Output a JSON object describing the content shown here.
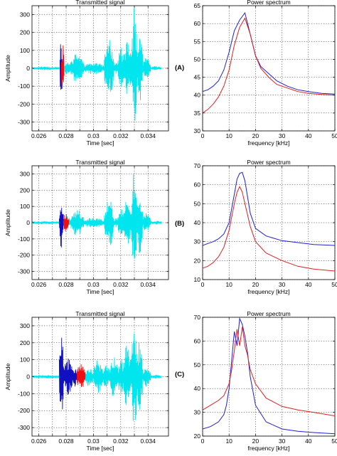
{
  "panel_labels": [
    "(A)",
    "(B)",
    "(C)"
  ],
  "chart_data": [
    {
      "type": "line",
      "panel": "(A)",
      "title": "Transmitted signal",
      "xlabel": "Time [sec]",
      "ylabel": "Amplitude",
      "xlim": [
        0.0255,
        0.0355
      ],
      "ylim": [
        -350,
        350
      ],
      "xticks": [
        0.026,
        0.027,
        0.028,
        0.029,
        0.03,
        0.031,
        0.032,
        0.033,
        0.034
      ],
      "xticklabels": [
        "0.026",
        "",
        "0.028",
        "",
        "0.03",
        "",
        "0.032",
        "",
        "0.034"
      ],
      "yticks": [
        -300,
        -200,
        -100,
        0,
        100,
        200,
        300
      ],
      "grid": true,
      "series": [
        {
          "color": "#00e5ee",
          "segments": [
            [
              0.0255,
              0.0275,
              10
            ],
            [
              0.0279,
              0.0283,
              40
            ],
            [
              0.0283,
              0.0293,
              85
            ],
            [
              0.0293,
              0.0308,
              35
            ],
            [
              0.0308,
              0.0315,
              160
            ],
            [
              0.0315,
              0.0318,
              30
            ],
            [
              0.0318,
              0.0322,
              120
            ],
            [
              0.0322,
              0.0328,
              160
            ],
            [
              0.0328,
              0.0332,
              340
            ],
            [
              0.0332,
              0.0336,
              200
            ],
            [
              0.0336,
              0.0342,
              60
            ],
            [
              0.0342,
              0.035,
              12
            ]
          ]
        },
        {
          "color": "#1010c0",
          "segments": [
            [
              0.02755,
              0.0277,
              190
            ]
          ]
        },
        {
          "color": "#ee1010",
          "segments": [
            [
              0.02765,
              0.02785,
              140
            ]
          ]
        }
      ]
    },
    {
      "type": "line",
      "panel": "(A)",
      "title": "Power spectrum",
      "xlabel": "frequency [kHz]",
      "ylabel": "",
      "xlim": [
        0,
        50
      ],
      "ylim": [
        30,
        65
      ],
      "xticks": [
        0,
        10,
        20,
        30,
        40,
        50
      ],
      "yticks": [
        30,
        35,
        40,
        45,
        50,
        55,
        60,
        65
      ],
      "grid": true,
      "series": [
        {
          "color": "#2020d0",
          "x": [
            0,
            2,
            4,
            6,
            8,
            10,
            12,
            14,
            16,
            18,
            20,
            22,
            25,
            28,
            32,
            36,
            40,
            45,
            50
          ],
          "y": [
            41,
            41.5,
            42.5,
            44,
            47,
            52,
            58,
            61,
            63,
            57,
            51,
            48,
            46,
            44,
            42.5,
            41.5,
            41,
            40.5,
            40.3
          ]
        },
        {
          "color": "#e02020",
          "x": [
            0,
            2,
            4,
            6,
            8,
            10,
            12,
            14,
            16,
            18,
            20,
            22,
            25,
            28,
            32,
            36,
            40,
            45,
            50
          ],
          "y": [
            35,
            36,
            37.5,
            39.5,
            42.5,
            47,
            54,
            59,
            61.5,
            57,
            51,
            47.5,
            45,
            43,
            42,
            41,
            40.5,
            40.2,
            40
          ]
        }
      ]
    },
    {
      "type": "line",
      "panel": "(B)",
      "title": "Transmitted signal",
      "xlabel": "Time [sec]",
      "ylabel": "Amplitude",
      "xlim": [
        0.0255,
        0.0355
      ],
      "ylim": [
        -350,
        350
      ],
      "xticks": [
        0.026,
        0.027,
        0.028,
        0.029,
        0.03,
        0.031,
        0.032,
        0.033,
        0.034
      ],
      "xticklabels": [
        "0.026",
        "",
        "0.028",
        "",
        "0.03",
        "",
        "0.032",
        "",
        "0.034"
      ],
      "yticks": [
        -300,
        -200,
        -100,
        0,
        100,
        200,
        300
      ],
      "grid": true,
      "series": [
        {
          "color": "#00e5ee",
          "segments": [
            [
              0.0255,
              0.0275,
              10
            ],
            [
              0.0279,
              0.0283,
              40
            ],
            [
              0.0283,
              0.0293,
              80
            ],
            [
              0.0293,
              0.0308,
              35
            ],
            [
              0.0308,
              0.0315,
              150
            ],
            [
              0.0315,
              0.0318,
              30
            ],
            [
              0.0318,
              0.0322,
              110
            ],
            [
              0.0322,
              0.0328,
              150
            ],
            [
              0.0328,
              0.0332,
              330
            ],
            [
              0.0332,
              0.0336,
              190
            ],
            [
              0.0336,
              0.0342,
              60
            ],
            [
              0.0342,
              0.035,
              12
            ]
          ]
        },
        {
          "color": "#1010c0",
          "segments": [
            [
              0.0275,
              0.0278,
              160
            ]
          ]
        },
        {
          "color": "#ee1010",
          "segments": [
            [
              0.0278,
              0.0282,
              60
            ]
          ]
        }
      ]
    },
    {
      "type": "line",
      "panel": "(B)",
      "title": "Power spectrum",
      "xlabel": "frequency [kHz]",
      "ylabel": "",
      "xlim": [
        0,
        50
      ],
      "ylim": [
        10,
        70
      ],
      "xticks": [
        0,
        10,
        20,
        30,
        40,
        50
      ],
      "yticks": [
        10,
        20,
        30,
        40,
        50,
        60,
        70
      ],
      "grid": true,
      "series": [
        {
          "color": "#2020d0",
          "x": [
            0,
            2,
            4,
            6,
            8,
            10,
            12,
            13,
            14,
            15,
            16,
            18,
            20,
            24,
            30,
            36,
            42,
            50
          ],
          "y": [
            28,
            29,
            30,
            31.5,
            34,
            40,
            55,
            63,
            66,
            66.5,
            62,
            45,
            37,
            33,
            30.5,
            29.5,
            28.5,
            28
          ]
        },
        {
          "color": "#e02020",
          "x": [
            0,
            2,
            4,
            6,
            8,
            10,
            12,
            13,
            14,
            15,
            16,
            18,
            20,
            24,
            30,
            36,
            42,
            50
          ],
          "y": [
            16,
            17,
            19,
            22,
            27,
            36,
            50,
            56,
            59,
            56,
            50,
            38,
            30,
            24,
            20,
            17,
            15.5,
            14.5
          ]
        }
      ]
    },
    {
      "type": "line",
      "panel": "(C)",
      "title": "Transmitted signal",
      "xlabel": "Time [sec]",
      "ylabel": "Amplitude",
      "xlim": [
        0.0255,
        0.0355
      ],
      "ylim": [
        -350,
        350
      ],
      "xticks": [
        0.026,
        0.027,
        0.028,
        0.029,
        0.03,
        0.031,
        0.032,
        0.033,
        0.034
      ],
      "xticklabels": [
        "0.026",
        "",
        "0.028",
        "",
        "0.03",
        "",
        "0.032",
        "",
        "0.034"
      ],
      "yticks": [
        -300,
        -200,
        -100,
        0,
        100,
        200,
        300
      ],
      "grid": true,
      "series": [
        {
          "color": "#00e5ee",
          "segments": [
            [
              0.0255,
              0.0275,
              10
            ],
            [
              0.0294,
              0.03,
              60
            ],
            [
              0.03,
              0.0307,
              100
            ],
            [
              0.0307,
              0.0312,
              70
            ],
            [
              0.0312,
              0.0318,
              130
            ],
            [
              0.0318,
              0.0322,
              110
            ],
            [
              0.0322,
              0.0328,
              200
            ],
            [
              0.0328,
              0.0332,
              340
            ],
            [
              0.0332,
              0.0336,
              220
            ],
            [
              0.0336,
              0.0342,
              60
            ],
            [
              0.0342,
              0.035,
              12
            ]
          ]
        },
        {
          "color": "#1010c0",
          "segments": [
            [
              0.0275,
              0.0278,
              270
            ],
            [
              0.0278,
              0.0285,
              110
            ],
            [
              0.0285,
              0.0288,
              60
            ]
          ]
        },
        {
          "color": "#ee1010",
          "segments": [
            [
              0.0288,
              0.0294,
              90
            ]
          ]
        }
      ]
    },
    {
      "type": "line",
      "panel": "(C)",
      "title": "Power spectrum",
      "xlabel": "frequency [kHz]",
      "ylabel": "",
      "xlim": [
        0,
        50
      ],
      "ylim": [
        20,
        70
      ],
      "xticks": [
        0,
        10,
        20,
        30,
        40,
        50
      ],
      "yticks": [
        20,
        30,
        40,
        50,
        60,
        70
      ],
      "grid": true,
      "series": [
        {
          "color": "#2020d0",
          "x": [
            0,
            3,
            6,
            8,
            9,
            10,
            11,
            12,
            13,
            14,
            15,
            16,
            17,
            18,
            20,
            24,
            30,
            36,
            42,
            50
          ],
          "y": [
            23,
            24,
            26,
            29,
            33,
            40,
            52,
            64,
            58,
            69.5,
            67,
            62,
            55,
            45,
            33,
            26,
            23,
            22,
            21.5,
            21
          ]
        },
        {
          "color": "#e02020",
          "x": [
            0,
            3,
            6,
            8,
            10,
            11,
            12,
            13,
            14,
            15,
            16,
            17,
            18,
            20,
            24,
            30,
            36,
            42,
            50
          ],
          "y": [
            31,
            33,
            35,
            37,
            42,
            48,
            56,
            65,
            58,
            66,
            58,
            54,
            48,
            42,
            36,
            32.5,
            31,
            30,
            28.5
          ]
        }
      ]
    }
  ]
}
